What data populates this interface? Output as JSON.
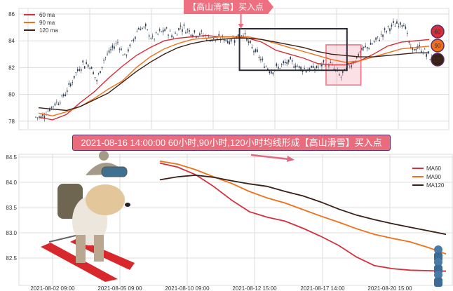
{
  "chart_data": [
    {
      "type": "line",
      "subtype": "candlestick-with-moving-averages",
      "ylim": [
        77.5,
        86.3
      ],
      "yticks": [
        78,
        80,
        82,
        84,
        86
      ],
      "grid": true,
      "legend_placement": "top-left",
      "close": [
        78.3,
        78.8,
        79.3,
        79.7,
        80.5,
        81.6,
        82.3,
        82.2,
        81.0,
        82.6,
        83.3,
        83.9,
        82.8,
        83.8,
        85.0,
        84.9,
        84.1,
        84.6,
        84.8,
        84.3,
        85.1,
        84.8,
        84.6,
        84.5,
        84.2,
        84.1,
        84.2,
        84.0,
        84.3,
        84.6,
        83.6,
        83.0,
        82.2,
        81.8,
        82.0,
        82.3,
        82.4,
        82.0,
        81.9,
        81.9,
        82.1,
        82.5,
        81.9,
        81.3,
        82.0,
        82.6,
        83.3,
        83.6,
        84.0,
        84.5,
        85.0,
        85.3,
        85.4,
        83.3,
        83.5,
        83.2,
        82.6
      ],
      "ma_x": [
        0,
        2,
        4,
        6,
        8,
        10,
        12,
        14,
        16,
        18,
        20,
        22,
        24,
        26,
        28,
        30,
        32,
        34,
        36,
        38,
        40,
        42,
        44,
        46,
        48,
        50,
        52,
        54,
        56
      ],
      "series": [
        {
          "name": "60 ma",
          "color": "#d62f3a",
          "values": [
            78.3,
            78.1,
            78.5,
            79.4,
            80.2,
            81.2,
            82.1,
            82.9,
            83.5,
            84.0,
            84.2,
            84.3,
            84.4,
            84.3,
            84.3,
            84.2,
            83.9,
            83.3,
            83.0,
            82.7,
            82.3,
            82.2,
            82.2,
            82.5,
            83.0,
            83.6,
            83.9,
            84.0,
            84.1
          ]
        },
        {
          "name": "90 ma",
          "color": "#f07019",
          "values": [
            78.6,
            78.4,
            78.7,
            79.1,
            79.7,
            80.4,
            81.0,
            82.0,
            82.8,
            83.4,
            83.8,
            84.1,
            84.2,
            84.3,
            84.3,
            84.3,
            84.1,
            83.8,
            83.5,
            83.2,
            82.9,
            82.6,
            82.4,
            82.5,
            82.8,
            83.1,
            83.4,
            83.5,
            83.6
          ]
        },
        {
          "name": "120 ma",
          "color": "#3a1f14",
          "values": [
            79.0,
            78.9,
            78.8,
            79.1,
            79.6,
            80.1,
            80.9,
            81.7,
            82.4,
            83.0,
            83.5,
            83.8,
            84.0,
            84.1,
            84.2,
            84.2,
            84.1,
            83.9,
            83.7,
            83.5,
            83.2,
            83.0,
            82.9,
            82.8,
            82.8,
            82.9,
            83.0,
            83.1,
            83.1
          ]
        }
      ],
      "annotations": {
        "buy_label": "【高山滑雪】买入点",
        "buy_index": 29,
        "black_box": {
          "x": [
            29,
            44
          ],
          "y": [
            81.8,
            84.9
          ]
        },
        "pink_box": {
          "x": [
            41,
            46
          ],
          "y": [
            80.7,
            83.7
          ]
        },
        "badges": [
          "60",
          "90",
          "120"
        ]
      }
    },
    {
      "type": "line",
      "ylim": [
        82.05,
        84.55
      ],
      "yticks": [
        "84.5",
        "84.0",
        "83.5",
        "83.0",
        "82.5"
      ],
      "xticks": [
        "2021-08-02 09:00",
        "2021-08-05 09:00",
        "2021-08-10 09:00",
        "2021-08-12 15:00",
        "2021-08-17 14:00",
        "2021-08-20 15:00"
      ],
      "grid": true,
      "legend_placement": "top-right",
      "series": [
        {
          "name": "MA60",
          "color": "#d62f3a",
          "values": [
            84.38,
            84.3,
            84.15,
            83.92,
            83.65,
            83.42,
            83.31,
            83.23,
            83.09,
            82.93,
            82.75,
            82.52,
            82.35,
            82.29,
            82.26,
            82.25,
            82.24
          ]
        },
        {
          "name": "MA90",
          "color": "#f07019",
          "values": [
            84.42,
            84.36,
            84.25,
            84.11,
            83.98,
            83.82,
            83.69,
            83.59,
            83.46,
            83.33,
            83.21,
            83.08,
            82.97,
            82.89,
            82.82,
            82.71,
            82.58
          ]
        },
        {
          "name": "MA120",
          "color": "#3a1f14",
          "values": [
            84.05,
            84.11,
            84.14,
            84.1,
            84.03,
            83.97,
            83.92,
            83.82,
            83.73,
            83.61,
            83.47,
            83.35,
            83.26,
            83.18,
            83.11,
            83.04,
            82.97
          ]
        }
      ],
      "annotation": "2021-08-16 14:00:00 60小时,90小时,120小时均线形成【高山滑雪】买入点"
    }
  ]
}
